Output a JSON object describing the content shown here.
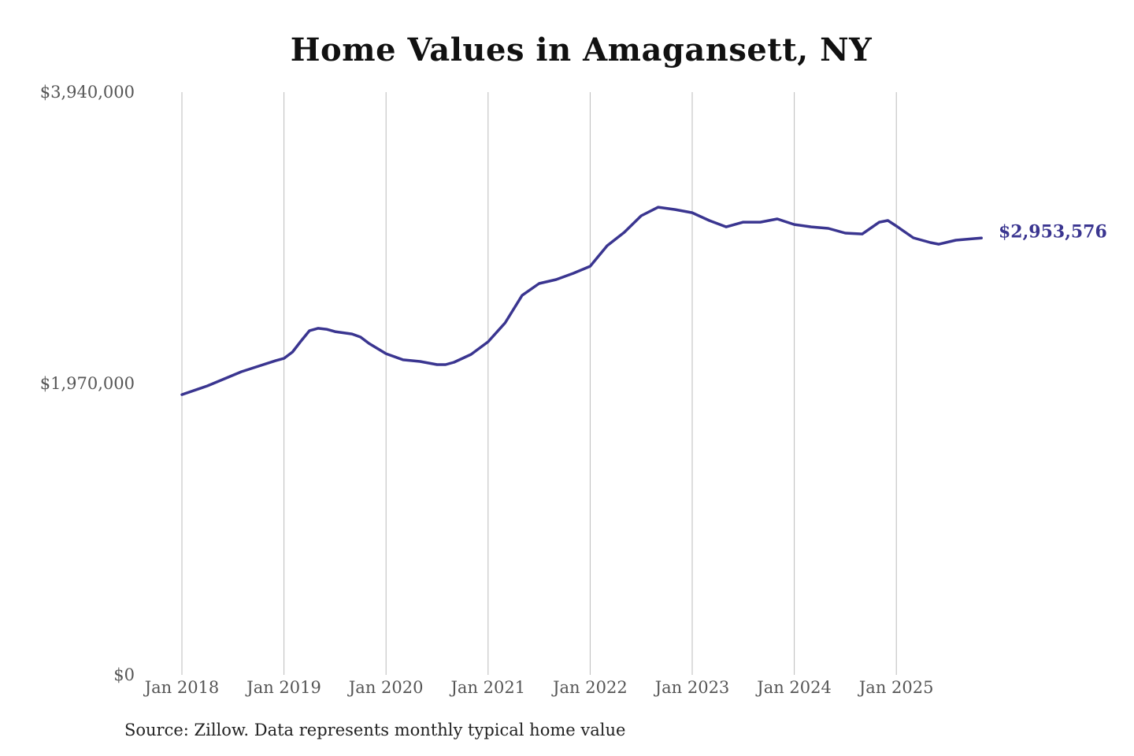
{
  "chart_data": {
    "type": "line",
    "title": "Home Values in Amagansett, NY",
    "source": "Source: Zillow. Data represents monthly typical home value",
    "xlabel": "",
    "ylabel": "",
    "ylim": [
      0,
      3940000
    ],
    "xlim": [
      "2018-01",
      "2025-11"
    ],
    "y_ticks": [
      {
        "value": 0,
        "label": "$0"
      },
      {
        "value": 1970000,
        "label": "$1,970,000"
      },
      {
        "value": 3940000,
        "label": "$3,940,000"
      }
    ],
    "x_ticks": [
      {
        "date": "2018-01",
        "label": "Jan 2018"
      },
      {
        "date": "2019-01",
        "label": "Jan 2019"
      },
      {
        "date": "2020-01",
        "label": "Jan 2020"
      },
      {
        "date": "2021-01",
        "label": "Jan 2021"
      },
      {
        "date": "2022-01",
        "label": "Jan 2022"
      },
      {
        "date": "2023-01",
        "label": "Jan 2023"
      },
      {
        "date": "2024-01",
        "label": "Jan 2024"
      },
      {
        "date": "2025-01",
        "label": "Jan 2025"
      }
    ],
    "grid": "vertical",
    "line_color": "#3a3590",
    "end_label": "$2,953,576",
    "series": [
      {
        "points": [
          [
            "2018-01",
            1895000
          ],
          [
            "2018-04",
            1954000
          ],
          [
            "2018-06",
            2002000
          ],
          [
            "2018-08",
            2050000
          ],
          [
            "2018-10",
            2087000
          ],
          [
            "2018-12",
            2124000
          ],
          [
            "2019-01",
            2140000
          ],
          [
            "2019-02",
            2183000
          ],
          [
            "2019-03",
            2257000
          ],
          [
            "2019-04",
            2327000
          ],
          [
            "2019-05",
            2343000
          ],
          [
            "2019-06",
            2337000
          ],
          [
            "2019-07",
            2321000
          ],
          [
            "2019-09",
            2305000
          ],
          [
            "2019-10",
            2284000
          ],
          [
            "2019-11",
            2241000
          ],
          [
            "2020-01",
            2172000
          ],
          [
            "2020-03",
            2130000
          ],
          [
            "2020-05",
            2119000
          ],
          [
            "2020-07",
            2098000
          ],
          [
            "2020-08",
            2098000
          ],
          [
            "2020-09",
            2114000
          ],
          [
            "2020-11",
            2167000
          ],
          [
            "2021-01",
            2252000
          ],
          [
            "2021-03",
            2380000
          ],
          [
            "2021-05",
            2566000
          ],
          [
            "2021-07",
            2646000
          ],
          [
            "2021-09",
            2673000
          ],
          [
            "2021-11",
            2715000
          ],
          [
            "2022-01",
            2763000
          ],
          [
            "2022-03",
            2902000
          ],
          [
            "2022-05",
            2992000
          ],
          [
            "2022-07",
            3104000
          ],
          [
            "2022-09",
            3162000
          ],
          [
            "2022-11",
            3146000
          ],
          [
            "2023-01",
            3125000
          ],
          [
            "2023-03",
            3072000
          ],
          [
            "2023-05",
            3029000
          ],
          [
            "2023-07",
            3061000
          ],
          [
            "2023-09",
            3061000
          ],
          [
            "2023-11",
            3083000
          ],
          [
            "2024-01",
            3045000
          ],
          [
            "2024-03",
            3029000
          ],
          [
            "2024-05",
            3019000
          ],
          [
            "2024-07",
            2987000
          ],
          [
            "2024-09",
            2981000
          ],
          [
            "2024-11",
            3061000
          ],
          [
            "2024-12",
            3072000
          ],
          [
            "2025-01",
            3035000
          ],
          [
            "2025-03",
            2955000
          ],
          [
            "2025-05",
            2923000
          ],
          [
            "2025-06",
            2912000
          ],
          [
            "2025-08",
            2939000
          ],
          [
            "2025-10",
            2949000
          ],
          [
            "2025-11",
            2953576
          ]
        ]
      }
    ]
  }
}
